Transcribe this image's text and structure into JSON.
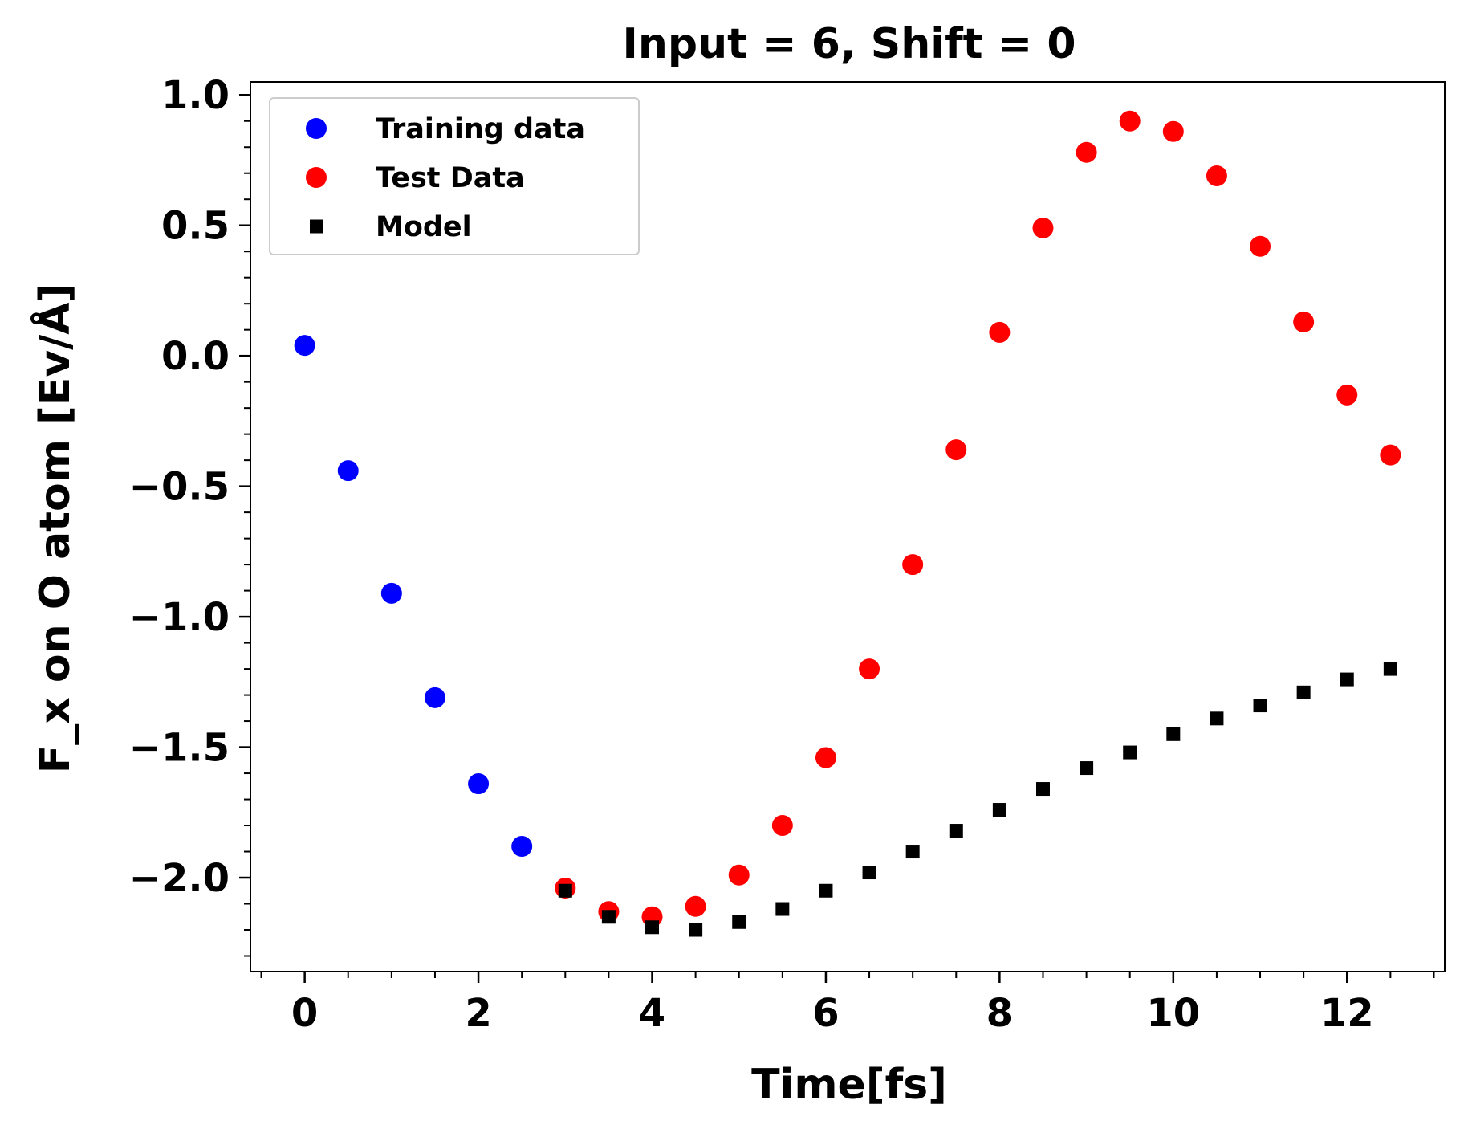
{
  "chart_data": {
    "type": "scatter",
    "title": "Input = 6, Shift = 0",
    "xlabel": "Time[fs]",
    "ylabel": "F_x on O atom [Ev/Å]",
    "xlim": [
      -0.625,
      13.125
    ],
    "ylim": [
      -2.36,
      1.05
    ],
    "x_ticks": [
      0,
      2,
      4,
      6,
      8,
      10,
      12
    ],
    "x_tick_labels": [
      "0",
      "2",
      "4",
      "6",
      "8",
      "10",
      "12"
    ],
    "y_ticks": [
      1.0,
      0.5,
      0.0,
      -0.5,
      -1.0,
      -1.5,
      -2.0
    ],
    "y_tick_labels": [
      "1.0",
      "0.5",
      "0.0",
      "−0.5",
      "−1.0",
      "−1.5",
      "−2.0"
    ],
    "grid": false,
    "legend_position": "upper-left",
    "series": [
      {
        "name": "Training data",
        "marker": "circle",
        "color": "#0000ff",
        "x": [
          0,
          0.5,
          1.0,
          1.5,
          2.0,
          2.5
        ],
        "y": [
          0.04,
          -0.44,
          -0.91,
          -1.31,
          -1.64,
          -1.88
        ]
      },
      {
        "name": "Test Data",
        "marker": "circle",
        "color": "#ff0000",
        "x": [
          3.0,
          3.5,
          4.0,
          4.5,
          5.0,
          5.5,
          6.0,
          6.5,
          7.0,
          7.5,
          8.0,
          8.5,
          9.0,
          9.5,
          10.0,
          10.5,
          11.0,
          11.5,
          12.0,
          12.5
        ],
        "y": [
          -2.04,
          -2.13,
          -2.15,
          -2.11,
          -1.99,
          -1.8,
          -1.54,
          -1.2,
          -0.8,
          -0.36,
          0.09,
          0.49,
          0.78,
          0.9,
          0.86,
          0.69,
          0.42,
          0.13,
          -0.15,
          -0.38
        ]
      },
      {
        "name": "Model",
        "marker": "square",
        "color": "#000000",
        "x": [
          3.0,
          3.5,
          4.0,
          4.5,
          5.0,
          5.5,
          6.0,
          6.5,
          7.0,
          7.5,
          8.0,
          8.5,
          9.0,
          9.5,
          10.0,
          10.5,
          11.0,
          11.5,
          12.0,
          12.5
        ],
        "y": [
          -2.05,
          -2.15,
          -2.19,
          -2.2,
          -2.17,
          -2.12,
          -2.05,
          -1.98,
          -1.9,
          -1.82,
          -1.74,
          -1.66,
          -1.58,
          -1.52,
          -1.45,
          -1.39,
          -1.34,
          -1.29,
          -1.24,
          -1.2
        ]
      }
    ]
  }
}
